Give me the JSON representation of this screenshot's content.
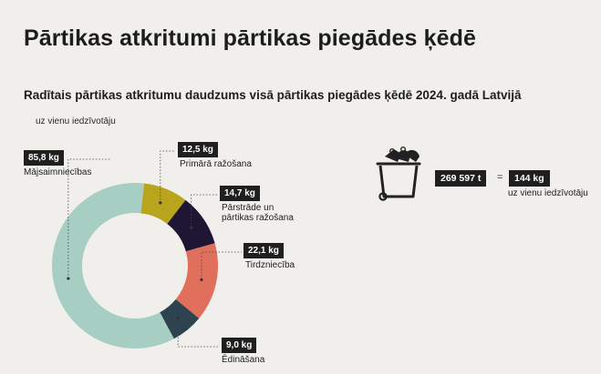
{
  "page": {
    "title": "Pārtikas atkritumi pārtikas piegādes ķēdē",
    "subtitle": "Radītais pārtikas atkritumu daudzums visā pārtikas piegādes ķēdē 2024. gadā Latvijā",
    "unit_note": "uz vienu iedzīvotāju"
  },
  "chart_data": {
    "type": "pie",
    "title": "Radītais pārtikas atkritumu daudzums visā pārtikas piegādes ķēdē 2024. gadā Latvijā",
    "unit_note": "uz vienu iedzīvotāju",
    "categories": [
      "Primārā ražošana",
      "Pārstrāde un pārtikas ražošana",
      "Tirdzniecība",
      "Ēdināšana",
      "Mājsaimniecības"
    ],
    "values": [
      12.5,
      14.7,
      22.1,
      9.0,
      85.8
    ],
    "value_labels": [
      "12,5 kg",
      "14,7 kg",
      "22,1 kg",
      "9,0 kg",
      "85,8 kg"
    ],
    "unit": "kg",
    "colors": [
      "#b9a51d",
      "#1f1633",
      "#e0705c",
      "#2e4350",
      "#a6cec3"
    ],
    "donut": true
  },
  "labels": {
    "slice_0": {
      "value": "12,5 kg",
      "name": "Primārā ražošana"
    },
    "slice_1": {
      "value": "14,7 kg",
      "name_line1": "Pārstrāde un",
      "name_line2": "pārtikas ražošana"
    },
    "slice_2": {
      "value": "22,1 kg",
      "name": "Tirdzniecība"
    },
    "slice_3": {
      "value": "9,0 kg",
      "name": "Ēdināšana"
    },
    "slice_4": {
      "value": "85,8 kg",
      "name": "Mājsaimniecības"
    }
  },
  "total": {
    "amount": "269 597 t",
    "equals": "=",
    "per_capita": "144 kg",
    "per_capita_note": "uz vienu iedzīvotāju",
    "icon": "trash-bin-icon"
  }
}
